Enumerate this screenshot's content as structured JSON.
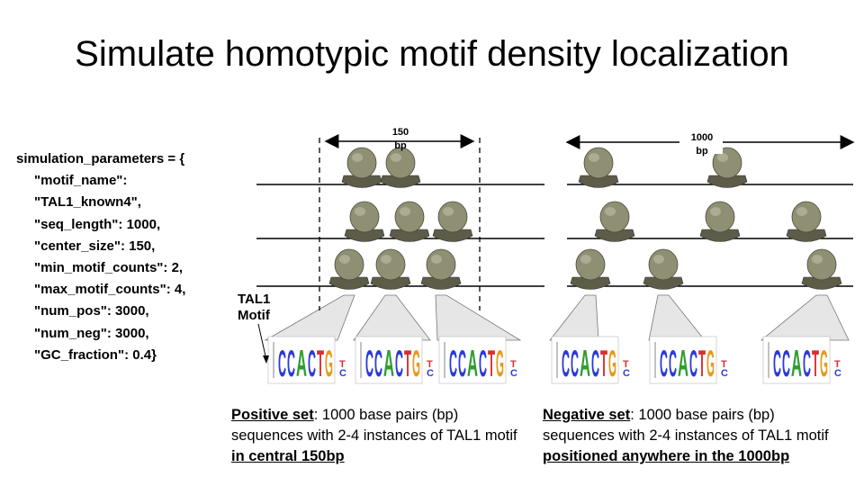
{
  "title": "Simulate homotypic motif density localization",
  "code": {
    "open": "simulation_parameters = {",
    "lines": [
      "\"motif_name\":",
      "\"TAL1_known4\",",
      "\"seq_length\": 1000,",
      "\"center_size\": 150,",
      "\"min_motif_counts\": 2,",
      "\"max_motif_counts\": 4,",
      "\"num_pos\": 3000,",
      "\"num_neg\": 3000,",
      "\"GC_fraction\": 0.4}"
    ]
  },
  "diagram": {
    "center_width_label": "150\nbp",
    "full_width_label": "1000\nbp",
    "motif_label": "TAL1\nMotif",
    "logo_letters": "CCACTG",
    "logo_trailing": "T",
    "logo_small_c": "C",
    "colors": {
      "c": "#2b3bd6",
      "a": "#2e9e2e",
      "t": "#d83030",
      "g": "#e69a1c",
      "blob": "#8f8f74",
      "blob_dark": "#5c5c48"
    }
  },
  "captions": {
    "positive": {
      "head": "Positive set",
      "text": ": 1000 base pairs (bp) sequences with 2-4 instances of TAL1 motif ",
      "emph": "in central 150bp"
    },
    "negative": {
      "head": "Negative set",
      "text": ": 1000 base pairs (bp) sequences with 2-4 instances of TAL1 motif ",
      "emph": "positioned anywhere in the 1000bp"
    }
  }
}
